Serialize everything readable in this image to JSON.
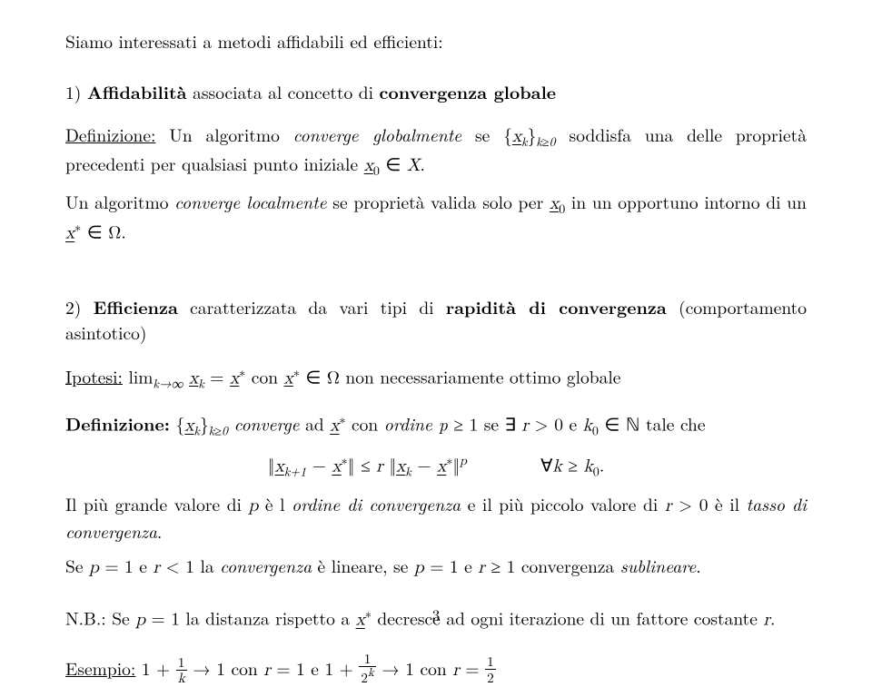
{
  "intro": "Siamo interessati a metodi affidabili ed efficienti:",
  "sec1_lead": "1) ",
  "sec1_bold1": "Affidabilità",
  "sec1_mid": " associata al concetto di ",
  "sec1_bold2": "convergenza globale",
  "def1_label": "Definizione:",
  "def1_a": " Un algoritmo ",
  "def1_conv": "converge globalmente",
  "def1_b": " se ",
  "def1_seq_open": "{",
  "def1_seq_x": "x",
  "def1_seq_k": "k",
  "def1_seq_close": "}",
  "def1_seq_idx": "k≥0",
  "def1_c": " soddisfa una delle proprietà precedenti per qualsiasi punto iniziale ",
  "def1_x0": "x",
  "def1_zero": "0",
  "def1_in": " ∈ ",
  "def1_X": "X",
  "def1_dot": ".",
  "loc_a": "Un algoritmo ",
  "loc_conv": "converge localmente",
  "loc_b": " se proprietà valida solo per ",
  "loc_c": " in un opportuno intorno di un ",
  "loc_star": "∗",
  "loc_in": " ∈ Ω.",
  "sec2_lead": "2) ",
  "sec2_bold1": "Efficienza",
  "sec2_mid": " caratterizzata da vari tipi di ",
  "sec2_bold2": "rapidità di convergenza",
  "sec2_tail": " (comportamento asintotico)",
  "hyp_label": "Ipotesi:",
  "hyp_a": "  lim",
  "hyp_kinf": "k→∞",
  "hyp_eq": " = ",
  "hyp_con": " con ",
  "hyp_b": " ∈ Ω non necessariamente ottimo globale",
  "def2_label": "Definizione:",
  "def2_a": " ",
  "def2_conv": "converge",
  "def2_ad": " ad ",
  "def2_con": " con ",
  "def2_ord_i": "ordine p",
  "def2_ge1": " ≥ 1 se ∃ ",
  "def2_r": "r",
  "def2_gt0": " > 0 e ",
  "def2_k0": "k",
  "def2_k0_sub": "0",
  "def2_innat": " ∈ ",
  "def2_nat": "ℕ",
  "def2_tale": " tale che",
  "disp_norm_open": "‖",
  "disp_kplus1": "k+1",
  "disp_minus": " − ",
  "disp_norm_close": "‖",
  "disp_le": " ≤ ",
  "disp_r": "r",
  "disp_p": "p",
  "disp_forall": "∀",
  "disp_k": "k",
  "disp_ge": " ≥ ",
  "disp_k0": "k",
  "disp_zero": "0",
  "disp_dot": ".",
  "conc_a": "Il più grande valore di ",
  "conc_p": "p",
  "conc_b": " è l ",
  "conc_ord_i": "ordine di convergenza",
  "conc_c": " e il più piccolo valore di ",
  "conc_r": "r",
  "conc_d": " > 0 è il ",
  "conc_tasso_i": "tasso di convergenza",
  "conc_dot": ".",
  "lin_a": "Se ",
  "lin_p": "p",
  "lin_eq1": " = 1 e ",
  "lin_r": "r",
  "lin_lt1": " < 1 la ",
  "lin_conv_i": "convergenza",
  "lin_mid": " è lineare, se ",
  "lin_p2": "p",
  "lin_eq1b": " = 1 e ",
  "lin_r2": "r",
  "lin_ge1": " ≥ 1 convergenza ",
  "lin_sub_i": "sublineare",
  "lin_dot": ".",
  "nb_a": "N.B.:  Se ",
  "nb_p": "p",
  "nb_eq1": " = 1 la distanza rispetto a ",
  "nb_b": " decresce ad ogni iterazione di un fattore costante ",
  "nb_r": "r",
  "nb_dot": ".",
  "ex_label": "Esempio:",
  "ex_a": " 1 + ",
  "ex_frac1_num": "1",
  "ex_frac1_den": "k",
  "ex_to": " → 1 con ",
  "ex_r": "r",
  "ex_eq1": " = 1 e 1 + ",
  "ex_frac2_num": "1",
  "ex_frac2_den_base": "2",
  "ex_frac2_den_exp": "k",
  "ex_to2": " → 1 con ",
  "ex_r2": "r",
  "ex_eq": " = ",
  "ex_frac3_num": "1",
  "ex_frac3_den": "2",
  "pagenum": "3"
}
